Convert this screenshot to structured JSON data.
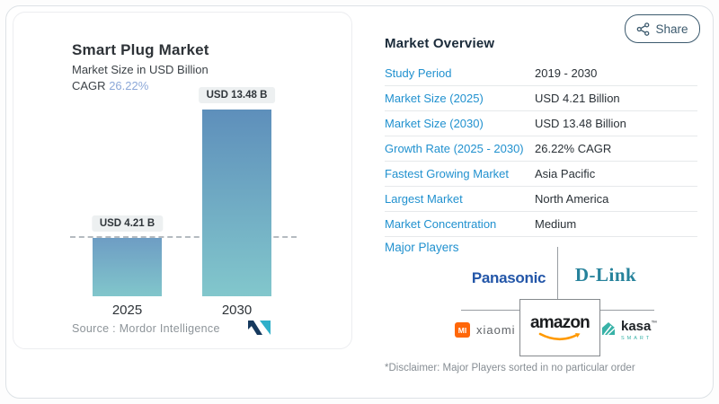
{
  "share_button": {
    "label": "Share"
  },
  "chart": {
    "title": "Smart Plug Market",
    "subtitle": "Market Size in USD Billion",
    "cagr_label": "CAGR",
    "cagr_value": "26.22%",
    "source": "Source :  Mordor Intelligence"
  },
  "chart_data": {
    "type": "bar",
    "title": "Smart Plug Market",
    "subtitle": "Market Size in USD Billion",
    "ylabel": "Market Size (USD Billion)",
    "categories": [
      "2025",
      "2030"
    ],
    "values": [
      4.21,
      13.48
    ],
    "bar_labels": [
      "USD 4.21 B",
      "USD 13.48 B"
    ],
    "cagr": "26.22%",
    "ylim": [
      0,
      13.48
    ],
    "reference_line_value": 4.21,
    "reference_line_style": "dashed",
    "legend": "none",
    "bar_gradient_top": "#5E8FBB",
    "bar_gradient_bottom": "#82C7CC"
  },
  "overview": {
    "title": "Market Overview",
    "rows": [
      {
        "label": "Study Period",
        "value": "2019 - 2030"
      },
      {
        "label": "Market Size (2025)",
        "value": "USD 4.21 Billion"
      },
      {
        "label": "Market Size (2030)",
        "value": "USD 13.48 Billion"
      },
      {
        "label": "Growth Rate (2025 - 2030)",
        "value": "26.22% CAGR"
      },
      {
        "label": "Fastest Growing Market",
        "value": "Asia Pacific"
      },
      {
        "label": "Largest Market",
        "value": "North America"
      },
      {
        "label": "Market Concentration",
        "value": "Medium"
      }
    ],
    "major_players_label": "Major Players",
    "players": [
      {
        "name": "Panasonic",
        "wordmark": "Panasonic"
      },
      {
        "name": "D-Link",
        "wordmark": "D-Link"
      },
      {
        "name": "Xiaomi",
        "wordmark": "xiaomi",
        "badge": "MI"
      },
      {
        "name": "Amazon",
        "wordmark": "amazon"
      },
      {
        "name": "Kasa Smart",
        "wordmark": "kasa",
        "sub": "SMART",
        "tm": "™"
      }
    ],
    "disclaimer": "*Disclaimer: Major Players sorted in no particular order"
  },
  "colors": {
    "label_blue": "#2191CF",
    "header_navy": "#1B2B3A",
    "cagr_light_blue": "#8CA8D8",
    "share_slate": "#3C5A6E",
    "panasonic_blue": "#2356A8",
    "dlink_teal": "#26829B",
    "xiaomi_orange": "#FF6709",
    "amazon_smile_orange": "#FF9900",
    "kasa_teal": "#38B2A7",
    "mordor_navy": "#16395E",
    "mordor_teal": "#2FAFC9"
  }
}
